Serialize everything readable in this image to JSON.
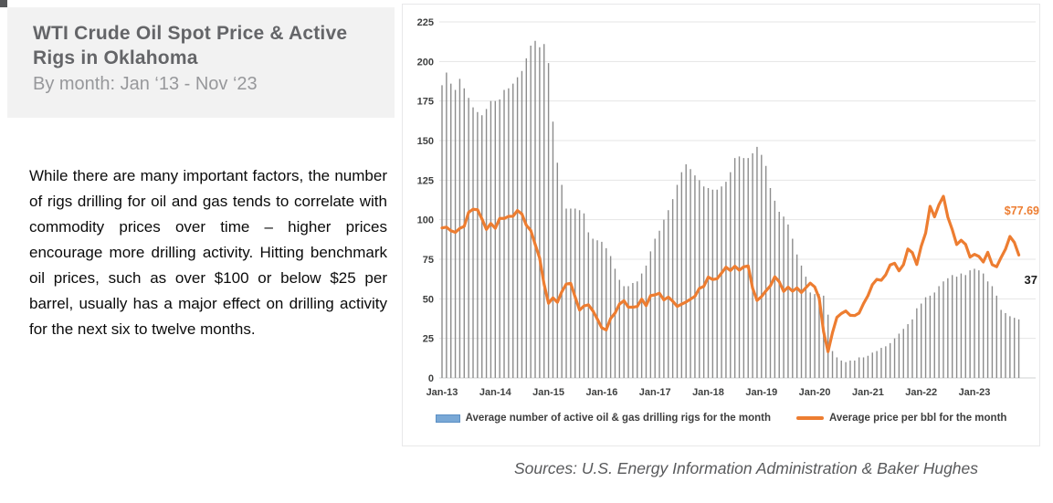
{
  "header": {
    "title": "WTI Crude Oil Spot Price & Active Rigs in Oklahoma",
    "title_lines": [
      "WTI Crude Oil Spot Price & Active",
      "Rigs in Oklahoma"
    ],
    "subtitle": "By month: Jan ‘13 - Nov ‘23"
  },
  "commentary": "While there are many important factors, the number of rigs drilling for oil and gas tends to correlate with commodity prices over time – higher prices encourage more drilling activity. Hitting benchmark oil prices, such as over $100 or below $25 per barrel, usually has a major effect on drilling activity for the next six to twelve months.",
  "sources": "Sources: U.S. Energy Information Administration & Baker Hughes",
  "colors": {
    "price_line": "#ED7D31",
    "bars": "#8c8c8c",
    "legend_bar_swatch": "#79A8D6",
    "panel_background": "#f2f2f2",
    "title_text": "#646568"
  },
  "chart_data": {
    "type": "bar+line",
    "x_start": "Jan-13",
    "x_end": "Nov-23",
    "x_tick_labels": [
      "Jan-13",
      "Jan-14",
      "Jan-15",
      "Jan-16",
      "Jan-17",
      "Jan-18",
      "Jan-19",
      "Jan-20",
      "Jan-21",
      "Jan-22",
      "Jan-23"
    ],
    "y_ticks": [
      0,
      25,
      50,
      75,
      100,
      125,
      150,
      175,
      200,
      225
    ],
    "ylim": [
      0,
      225
    ],
    "grid": true,
    "legend_position": "bottom",
    "series": [
      {
        "name": "Average number of active oil & gas drilling rigs for the month",
        "type": "bar",
        "color": "#8c8c8c",
        "values": [
          185,
          193,
          186,
          182,
          189,
          183,
          177,
          171,
          168,
          166,
          170,
          175,
          175,
          176,
          182,
          183,
          186,
          190,
          194,
          202,
          210,
          213,
          209,
          211,
          199,
          162,
          136,
          122,
          107,
          107,
          107,
          106,
          104,
          92,
          88,
          87,
          86,
          82,
          77,
          69,
          62,
          58,
          58,
          60,
          61,
          66,
          71,
          80,
          88,
          93,
          100,
          106,
          113,
          122,
          130,
          135,
          132,
          128,
          125,
          121,
          120,
          119,
          119,
          121,
          124,
          130,
          139,
          140,
          139,
          139,
          142,
          146,
          141,
          134,
          120,
          112,
          105,
          102,
          97,
          88,
          78,
          71,
          64,
          54,
          53,
          53,
          52,
          40,
          17,
          13,
          11,
          10,
          11,
          11,
          13,
          13,
          14,
          16,
          17,
          19,
          20,
          22,
          25,
          28,
          31,
          34,
          37,
          44,
          47,
          51,
          52,
          54,
          58,
          61,
          63,
          65,
          64,
          66,
          65,
          68,
          69,
          68,
          66,
          61,
          58,
          52,
          43,
          41,
          39,
          38,
          37
        ]
      },
      {
        "name": "Average price per bbl for the month",
        "type": "line",
        "color": "#ED7D31",
        "values": [
          94.8,
          95.3,
          93.0,
          92.0,
          94.5,
          95.8,
          104.7,
          106.6,
          106.3,
          100.5,
          93.9,
          97.6,
          94.6,
          100.8,
          100.8,
          102.1,
          102.2,
          105.8,
          103.6,
          96.5,
          93.2,
          84.4,
          75.8,
          59.3,
          47.2,
          50.6,
          47.8,
          54.5,
          59.3,
          59.8,
          51.2,
          42.9,
          45.5,
          46.2,
          42.4,
          37.2,
          31.7,
          30.3,
          37.6,
          41.0,
          46.7,
          48.8,
          44.7,
          44.7,
          45.2,
          49.8,
          45.7,
          52.0,
          52.5,
          53.5,
          49.3,
          51.1,
          48.5,
          45.2,
          46.6,
          48.0,
          49.8,
          51.6,
          56.6,
          57.9,
          63.7,
          62.2,
          62.7,
          66.3,
          70.0,
          67.9,
          70.6,
          68.1,
          70.2,
          70.8,
          56.7,
          49.0,
          51.4,
          55.0,
          58.2,
          63.9,
          60.8,
          54.7,
          57.4,
          54.8,
          56.9,
          54.0,
          57.0,
          59.9,
          57.5,
          50.5,
          29.2,
          16.6,
          28.6,
          38.3,
          40.7,
          42.3,
          39.6,
          39.4,
          41.0,
          47.0,
          52.0,
          59.0,
          62.3,
          61.7,
          65.2,
          71.4,
          72.5,
          67.7,
          71.6,
          81.5,
          79.2,
          71.7,
          83.2,
          91.6,
          108.5,
          101.8,
          109.5,
          114.8,
          101.6,
          93.7,
          84.3,
          87.0,
          84.4,
          76.4,
          78.1,
          76.8,
          73.3,
          79.4,
          71.6,
          70.3,
          76.1,
          81.4,
          89.4,
          85.6,
          77.69
        ]
      }
    ],
    "end_labels": {
      "price": "$77.69",
      "rigs": "37"
    }
  }
}
